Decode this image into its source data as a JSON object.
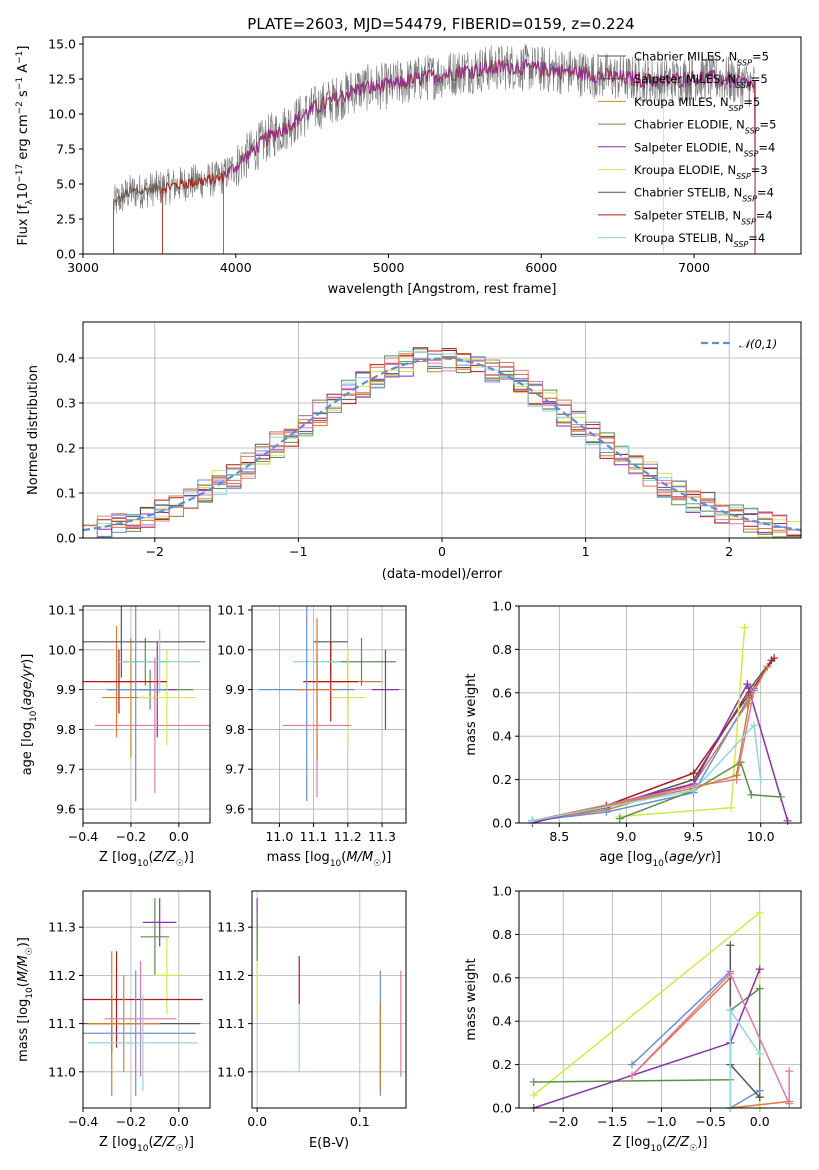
{
  "figure": {
    "title": "PLATE=2603, MJD=54479, FIBERID=0159, z=0.224"
  },
  "palette": [
    "#c9842c",
    "#5b8f4e",
    "#8e2fb0",
    "#d4e84a",
    "#555555",
    "#b01a1a",
    "#8fd6dc",
    "#6b8fd6",
    "#e07aa8",
    "#e07a3a"
  ],
  "legend_labels": [
    {
      "pre": "Chabrier MILES, N",
      "sub": "SSP",
      "post": "=5"
    },
    {
      "pre": "Salpeter MILES, N",
      "sub": "SSP",
      "post": "=5"
    },
    {
      "pre": "Kroupa MILES, N",
      "sub": "SSP",
      "post": "=5"
    },
    {
      "pre": "Chabrier ELODIE, N",
      "sub": "SSP",
      "post": "=5"
    },
    {
      "pre": "Salpeter ELODIE, N",
      "sub": "SSP",
      "post": "=4"
    },
    {
      "pre": "Kroupa ELODIE, N",
      "sub": "SSP",
      "post": "=3"
    },
    {
      "pre": "Chabrier STELIB, N",
      "sub": "SSP",
      "post": "=4"
    },
    {
      "pre": "Salpeter STELIB, N",
      "sub": "SSP",
      "post": "=4"
    },
    {
      "pre": "Kroupa STELIB, N",
      "sub": "SSP",
      "post": "=4"
    }
  ],
  "chart_data": [
    {
      "id": "spectrum",
      "type": "line",
      "xlabel": "wavelength [Angstrom, rest frame]",
      "ylabel": "Flux [f_λ 10^-17 erg cm^-2 s^-1 A^-1]",
      "xlim": [
        3000,
        7700
      ],
      "ylim": [
        0,
        15.5
      ],
      "xticks": [
        3000,
        4000,
        5000,
        6000,
        7000
      ],
      "yticks": [
        0.0,
        2.5,
        5.0,
        7.5,
        10.0,
        12.5,
        15.0
      ],
      "continuum": {
        "x": [
          3200,
          3300,
          3500,
          3700,
          3900,
          4000,
          4200,
          4500,
          4800,
          5000,
          5200,
          5500,
          5800,
          6000,
          6200,
          6500,
          6800,
          7000,
          7200,
          7400
        ],
        "y": [
          3.6,
          4.4,
          4.7,
          5.1,
          5.4,
          6.3,
          8.2,
          10.3,
          11.8,
          12.0,
          12.5,
          13.1,
          13.4,
          13.2,
          13.0,
          12.6,
          12.3,
          12.6,
          12.5,
          12.0
        ]
      },
      "model_ranges": [
        [
          3520,
          7400
        ],
        [
          3200,
          7400
        ],
        [
          3200,
          7400
        ],
        [
          3920,
          7400
        ],
        [
          3920,
          7400
        ],
        [
          3920,
          6800
        ],
        [
          3200,
          7400
        ],
        [
          3520,
          7400
        ],
        [
          3200,
          7400
        ]
      ]
    },
    {
      "id": "residuals",
      "type": "area",
      "xlabel": "(data-model)/error",
      "ylabel": "Normed distribution",
      "xlim": [
        -2.5,
        2.5
      ],
      "ylim": [
        0,
        0.48
      ],
      "xticks": [
        -2,
        -1,
        0,
        1,
        2
      ],
      "yticks": [
        0.0,
        0.1,
        0.2,
        0.3,
        0.4
      ],
      "bin_width": 0.1,
      "reference": {
        "name": "𝒩(0,1)",
        "mean": 0,
        "sigma": 1
      }
    },
    {
      "id": "age-vs-Z",
      "type": "scatter",
      "xlabel": "Z [log10(Z/Z☉)]",
      "ylabel": "age [log10(age/yr)]",
      "xlim": [
        -0.4,
        0.13
      ],
      "ylim": [
        9.565,
        10.11
      ],
      "xticks": [
        -0.4,
        -0.2,
        0.0
      ],
      "yticks": [
        9.6,
        9.7,
        9.8,
        9.9,
        10.0,
        10.1
      ],
      "points": [
        {
          "x": -0.12,
          "y": 9.9,
          "xerr": 0.18,
          "yerr": 0.05,
          "c": 1
        },
        {
          "x": -0.26,
          "y": 9.92,
          "xerr": 0.06,
          "yerr": 0.14,
          "c": 9
        },
        {
          "x": -0.2,
          "y": 9.88,
          "xerr": 0.12,
          "yerr": 0.15,
          "c": 0
        },
        {
          "x": -0.14,
          "y": 9.97,
          "xerr": 0.1,
          "yerr": 0.06,
          "c": 1
        },
        {
          "x": -0.09,
          "y": 9.9,
          "xerr": 0.08,
          "yerr": 0.12,
          "c": 2
        },
        {
          "x": -0.05,
          "y": 9.88,
          "xerr": 0.12,
          "yerr": 0.12,
          "c": 3
        },
        {
          "x": -0.24,
          "y": 10.02,
          "xerr": 0.35,
          "yerr": 0.09,
          "c": 4
        },
        {
          "x": -0.25,
          "y": 9.92,
          "xerr": 0.2,
          "yerr": 0.08,
          "c": 5
        },
        {
          "x": -0.08,
          "y": 9.97,
          "xerr": 0.17,
          "yerr": 0.08,
          "c": 6
        },
        {
          "x": -0.18,
          "y": 9.9,
          "xerr": 0.12,
          "yerr": 0.28,
          "c": 7
        },
        {
          "x": -0.1,
          "y": 9.81,
          "xerr": 0.25,
          "yerr": 0.17,
          "c": 8
        }
      ]
    },
    {
      "id": "age-vs-mass",
      "type": "scatter",
      "xlabel": "mass [log10(M/M☉)]",
      "ylabel": "",
      "xlim": [
        10.92,
        11.37
      ],
      "ylim": [
        9.565,
        10.11
      ],
      "xticks": [
        11.0,
        11.1,
        11.2,
        11.3
      ],
      "yticks": [
        9.6,
        9.7,
        9.8,
        9.9,
        10.0,
        10.1
      ],
      "points": [
        {
          "x": 11.2,
          "y": 9.92,
          "xerr": 0.1,
          "yerr": 0.06,
          "c": 0
        },
        {
          "x": 11.24,
          "y": 9.97,
          "xerr": 0.1,
          "yerr": 0.06,
          "c": 1
        },
        {
          "x": 11.31,
          "y": 9.9,
          "xerr": 0.04,
          "yerr": 0.1,
          "c": 2
        },
        {
          "x": 11.2,
          "y": 9.88,
          "xerr": 0.05,
          "yerr": 0.12,
          "c": 3
        },
        {
          "x": 11.15,
          "y": 10.02,
          "xerr": 0.05,
          "yerr": 0.09,
          "c": 4
        },
        {
          "x": 11.15,
          "y": 9.92,
          "xerr": 0.08,
          "yerr": 0.1,
          "c": 5
        },
        {
          "x": 11.11,
          "y": 9.97,
          "xerr": 0.07,
          "yerr": 0.1,
          "c": 6
        },
        {
          "x": 11.08,
          "y": 9.9,
          "xerr": 0.14,
          "yerr": 0.28,
          "c": 7
        },
        {
          "x": 11.11,
          "y": 9.81,
          "xerr": 0.1,
          "yerr": 0.18,
          "c": 8
        },
        {
          "x": 11.11,
          "y": 9.9,
          "xerr": 0.06,
          "yerr": 0.18,
          "c": 9
        }
      ]
    },
    {
      "id": "massweight-vs-age",
      "type": "line",
      "xlabel": "age [log10(age/yr)]",
      "ylabel": "mass weight",
      "xlim": [
        8.2,
        10.3
      ],
      "ylim": [
        0,
        1.0
      ],
      "xticks": [
        8.5,
        9.0,
        9.5,
        10.0
      ],
      "yticks": [
        0.0,
        0.2,
        0.4,
        0.6,
        0.8,
        1.0
      ],
      "series": [
        {
          "c": 4,
          "x": [
            8.3,
            8.85,
            9.5,
            9.92,
            10.08
          ],
          "y": [
            0.01,
            0.07,
            0.2,
            0.62,
            0.75
          ]
        },
        {
          "c": 5,
          "x": [
            8.3,
            8.85,
            9.5,
            9.92,
            10.1
          ],
          "y": [
            0.01,
            0.08,
            0.23,
            0.6,
            0.76
          ]
        },
        {
          "c": 9,
          "x": [
            8.3,
            8.85,
            9.5,
            9.9,
            10.05
          ],
          "y": [
            0.01,
            0.06,
            0.18,
            0.55,
            0.72
          ]
        },
        {
          "c": 7,
          "x": [
            8.3,
            8.85,
            9.5,
            9.95
          ],
          "y": [
            0.01,
            0.05,
            0.14,
            0.62
          ]
        },
        {
          "c": 2,
          "x": [
            8.3,
            9.5,
            9.9,
            10.2
          ],
          "y": [
            0.0,
            0.18,
            0.64,
            0.01
          ]
        },
        {
          "c": 3,
          "x": [
            8.95,
            9.78,
            9.88
          ],
          "y": [
            0.03,
            0.07,
            0.9
          ]
        },
        {
          "c": 1,
          "x": [
            8.95,
            9.5,
            9.85,
            9.93,
            10.15
          ],
          "y": [
            0.02,
            0.15,
            0.28,
            0.13,
            0.12
          ]
        },
        {
          "c": 8,
          "x": [
            8.3,
            9.5,
            9.82,
            9.95
          ],
          "y": [
            0.01,
            0.17,
            0.2,
            0.61
          ]
        },
        {
          "c": 0,
          "x": [
            8.3,
            9.5,
            9.82,
            9.92
          ],
          "y": [
            0.01,
            0.16,
            0.22,
            0.58
          ]
        },
        {
          "c": 6,
          "x": [
            8.3,
            9.5,
            9.95,
            10.0
          ],
          "y": [
            0.01,
            0.15,
            0.45,
            0.2
          ]
        }
      ]
    },
    {
      "id": "mass-vs-Z",
      "type": "scatter",
      "xlabel": "Z [log10(Z/Z☉)]",
      "ylabel": "mass [log10(M/M☉)]",
      "xlim": [
        -0.4,
        0.13
      ],
      "ylim": [
        10.925,
        11.375
      ],
      "xticks": [
        -0.4,
        -0.2,
        0.0
      ],
      "yticks": [
        11.0,
        11.1,
        11.2,
        11.3
      ],
      "points": [
        {
          "x": -0.08,
          "y": 11.31,
          "xerr": 0.07,
          "yerr": 0.05,
          "c": 2
        },
        {
          "x": -0.1,
          "y": 11.28,
          "xerr": 0.06,
          "yerr": 0.08,
          "c": 1
        },
        {
          "x": -0.05,
          "y": 11.2,
          "xerr": 0.05,
          "yerr": 0.08,
          "c": 3
        },
        {
          "x": -0.26,
          "y": 11.15,
          "xerr": 0.36,
          "yerr": 0.1,
          "c": 5
        },
        {
          "x": -0.28,
          "y": 11.1,
          "xerr": 0.37,
          "yerr": 0.06,
          "c": 4
        },
        {
          "x": -0.23,
          "y": 11.1,
          "xerr": 0.15,
          "yerr": 0.1,
          "c": 9
        },
        {
          "x": -0.28,
          "y": 11.1,
          "xerr": 0.1,
          "yerr": 0.15,
          "c": 0
        },
        {
          "x": -0.18,
          "y": 11.08,
          "xerr": 0.25,
          "yerr": 0.13,
          "c": 7
        },
        {
          "x": -0.16,
          "y": 11.11,
          "xerr": 0.15,
          "yerr": 0.12,
          "c": 8
        },
        {
          "x": -0.15,
          "y": 11.06,
          "xerr": 0.23,
          "yerr": 0.1,
          "c": 6
        }
      ]
    },
    {
      "id": "mass-vs-ebv",
      "type": "scatter",
      "xlabel": "E(B-V)",
      "ylabel": "",
      "xlim": [
        -0.005,
        0.145
      ],
      "ylim": [
        10.925,
        11.375
      ],
      "xticks": [
        0.0,
        0.1
      ],
      "yticks": [
        11.0,
        11.1,
        11.2,
        11.3
      ],
      "points": [
        {
          "x": 0.0,
          "y": 11.31,
          "yerr": 0.05,
          "c": 2
        },
        {
          "x": 0.0,
          "y": 11.2,
          "yerr": 0.09,
          "c": 3
        },
        {
          "x": 0.0,
          "y": 11.28,
          "yerr": 0.05,
          "c": 1
        },
        {
          "x": 0.041,
          "y": 11.19,
          "yerr": 0.05,
          "c": 5
        },
        {
          "x": 0.041,
          "y": 11.07,
          "yerr": 0.07,
          "c": 6
        },
        {
          "x": 0.12,
          "y": 11.08,
          "yerr": 0.13,
          "c": 7
        },
        {
          "x": 0.12,
          "y": 11.05,
          "yerr": 0.09,
          "c": 0
        },
        {
          "x": 0.14,
          "y": 11.1,
          "yerr": 0.11,
          "c": 8
        }
      ]
    },
    {
      "id": "massweight-vs-Z",
      "type": "line",
      "xlabel": "Z [log10(Z/Z☉)]",
      "ylabel": "mass weight",
      "xlim": [
        -2.45,
        0.42
      ],
      "ylim": [
        0,
        1.0
      ],
      "xticks": [
        -2.0,
        -1.5,
        -1.0,
        -0.5,
        0.0
      ],
      "yticks": [
        0.0,
        0.2,
        0.4,
        0.6,
        0.8,
        1.0
      ],
      "series": [
        {
          "c": 3,
          "x": [
            -2.3,
            0.0,
            0.0
          ],
          "y": [
            0.06,
            0.9,
            0.0
          ]
        },
        {
          "c": 1,
          "x": [
            -2.3,
            -0.3,
            -0.3,
            0.0,
            0.0
          ],
          "y": [
            0.12,
            0.13,
            0.45,
            0.55,
            0.05
          ]
        },
        {
          "c": 2,
          "x": [
            -2.3,
            -0.3,
            0.0
          ],
          "y": [
            0.0,
            0.3,
            0.64
          ]
        },
        {
          "c": 7,
          "x": [
            -1.3,
            -0.3,
            -0.3,
            0.0
          ],
          "y": [
            0.2,
            0.63,
            0.0,
            0.08
          ]
        },
        {
          "c": 9,
          "x": [
            -1.3,
            -0.3,
            -0.3,
            0.3
          ],
          "y": [
            0.15,
            0.6,
            0.0,
            0.03
          ]
        },
        {
          "c": 4,
          "x": [
            -0.3,
            -0.3,
            0.0
          ],
          "y": [
            0.75,
            0.2,
            0.05
          ]
        },
        {
          "c": 8,
          "x": [
            -1.3,
            -0.3,
            0.3,
            0.3
          ],
          "y": [
            0.15,
            0.62,
            0.02,
            0.17
          ]
        },
        {
          "c": 6,
          "x": [
            -0.3,
            -0.3,
            0.0
          ],
          "y": [
            0.0,
            0.45,
            0.25
          ]
        }
      ]
    }
  ]
}
